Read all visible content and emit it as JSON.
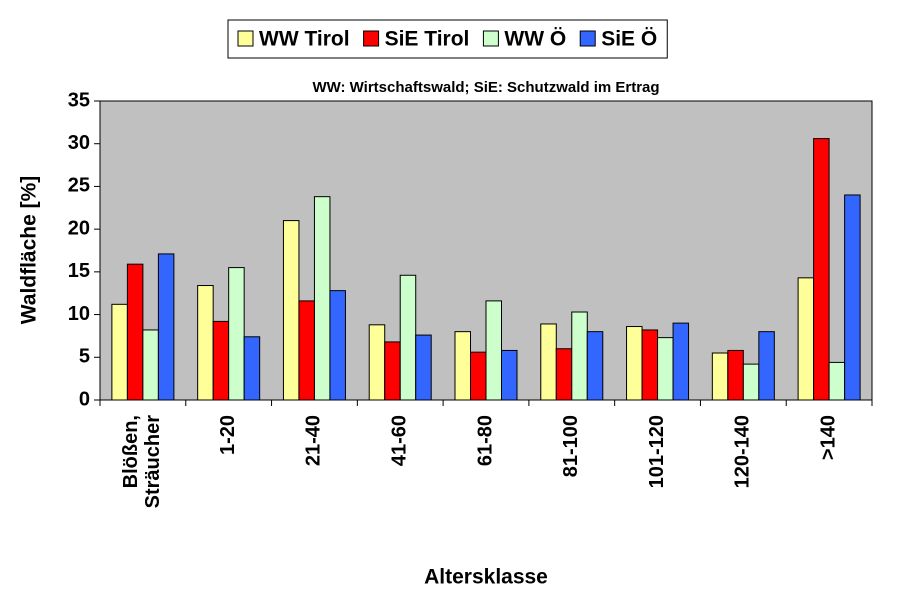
{
  "chart_data": {
    "type": "bar",
    "subtitle": "WW: Wirtschaftswald; SiE: Schutzwald im Ertrag",
    "x_label": "Altersklasse",
    "y_label": "Waldfläche [%]",
    "categories": [
      [
        "Blößen,",
        "Sträucher"
      ],
      "1-20",
      "21-40",
      "41-60",
      "61-80",
      "81-100",
      "101-120",
      "120-140",
      ">140"
    ],
    "series": [
      {
        "name": "WW Tirol",
        "color": "#ffff99",
        "values": [
          11.2,
          13.4,
          21.0,
          8.8,
          8.0,
          8.9,
          8.6,
          5.5,
          14.3
        ]
      },
      {
        "name": "SiE Tirol",
        "color": "#ff0000",
        "values": [
          15.9,
          9.2,
          11.6,
          6.8,
          5.6,
          6.0,
          8.2,
          5.8,
          30.6
        ]
      },
      {
        "name": "WW Ö",
        "color": "#ccffcc",
        "values": [
          8.2,
          15.5,
          23.8,
          14.6,
          11.6,
          10.3,
          7.3,
          4.2,
          4.4
        ]
      },
      {
        "name": "SiE Ö",
        "color": "#3366ff",
        "values": [
          17.1,
          7.4,
          12.8,
          7.6,
          5.8,
          8.0,
          9.0,
          8.0,
          24.0
        ]
      }
    ],
    "ylim": [
      0,
      35
    ],
    "yticks": [
      0,
      5,
      10,
      15,
      20,
      25,
      30,
      35
    ],
    "legend": "top",
    "plot_background": "#c0c0c0"
  }
}
